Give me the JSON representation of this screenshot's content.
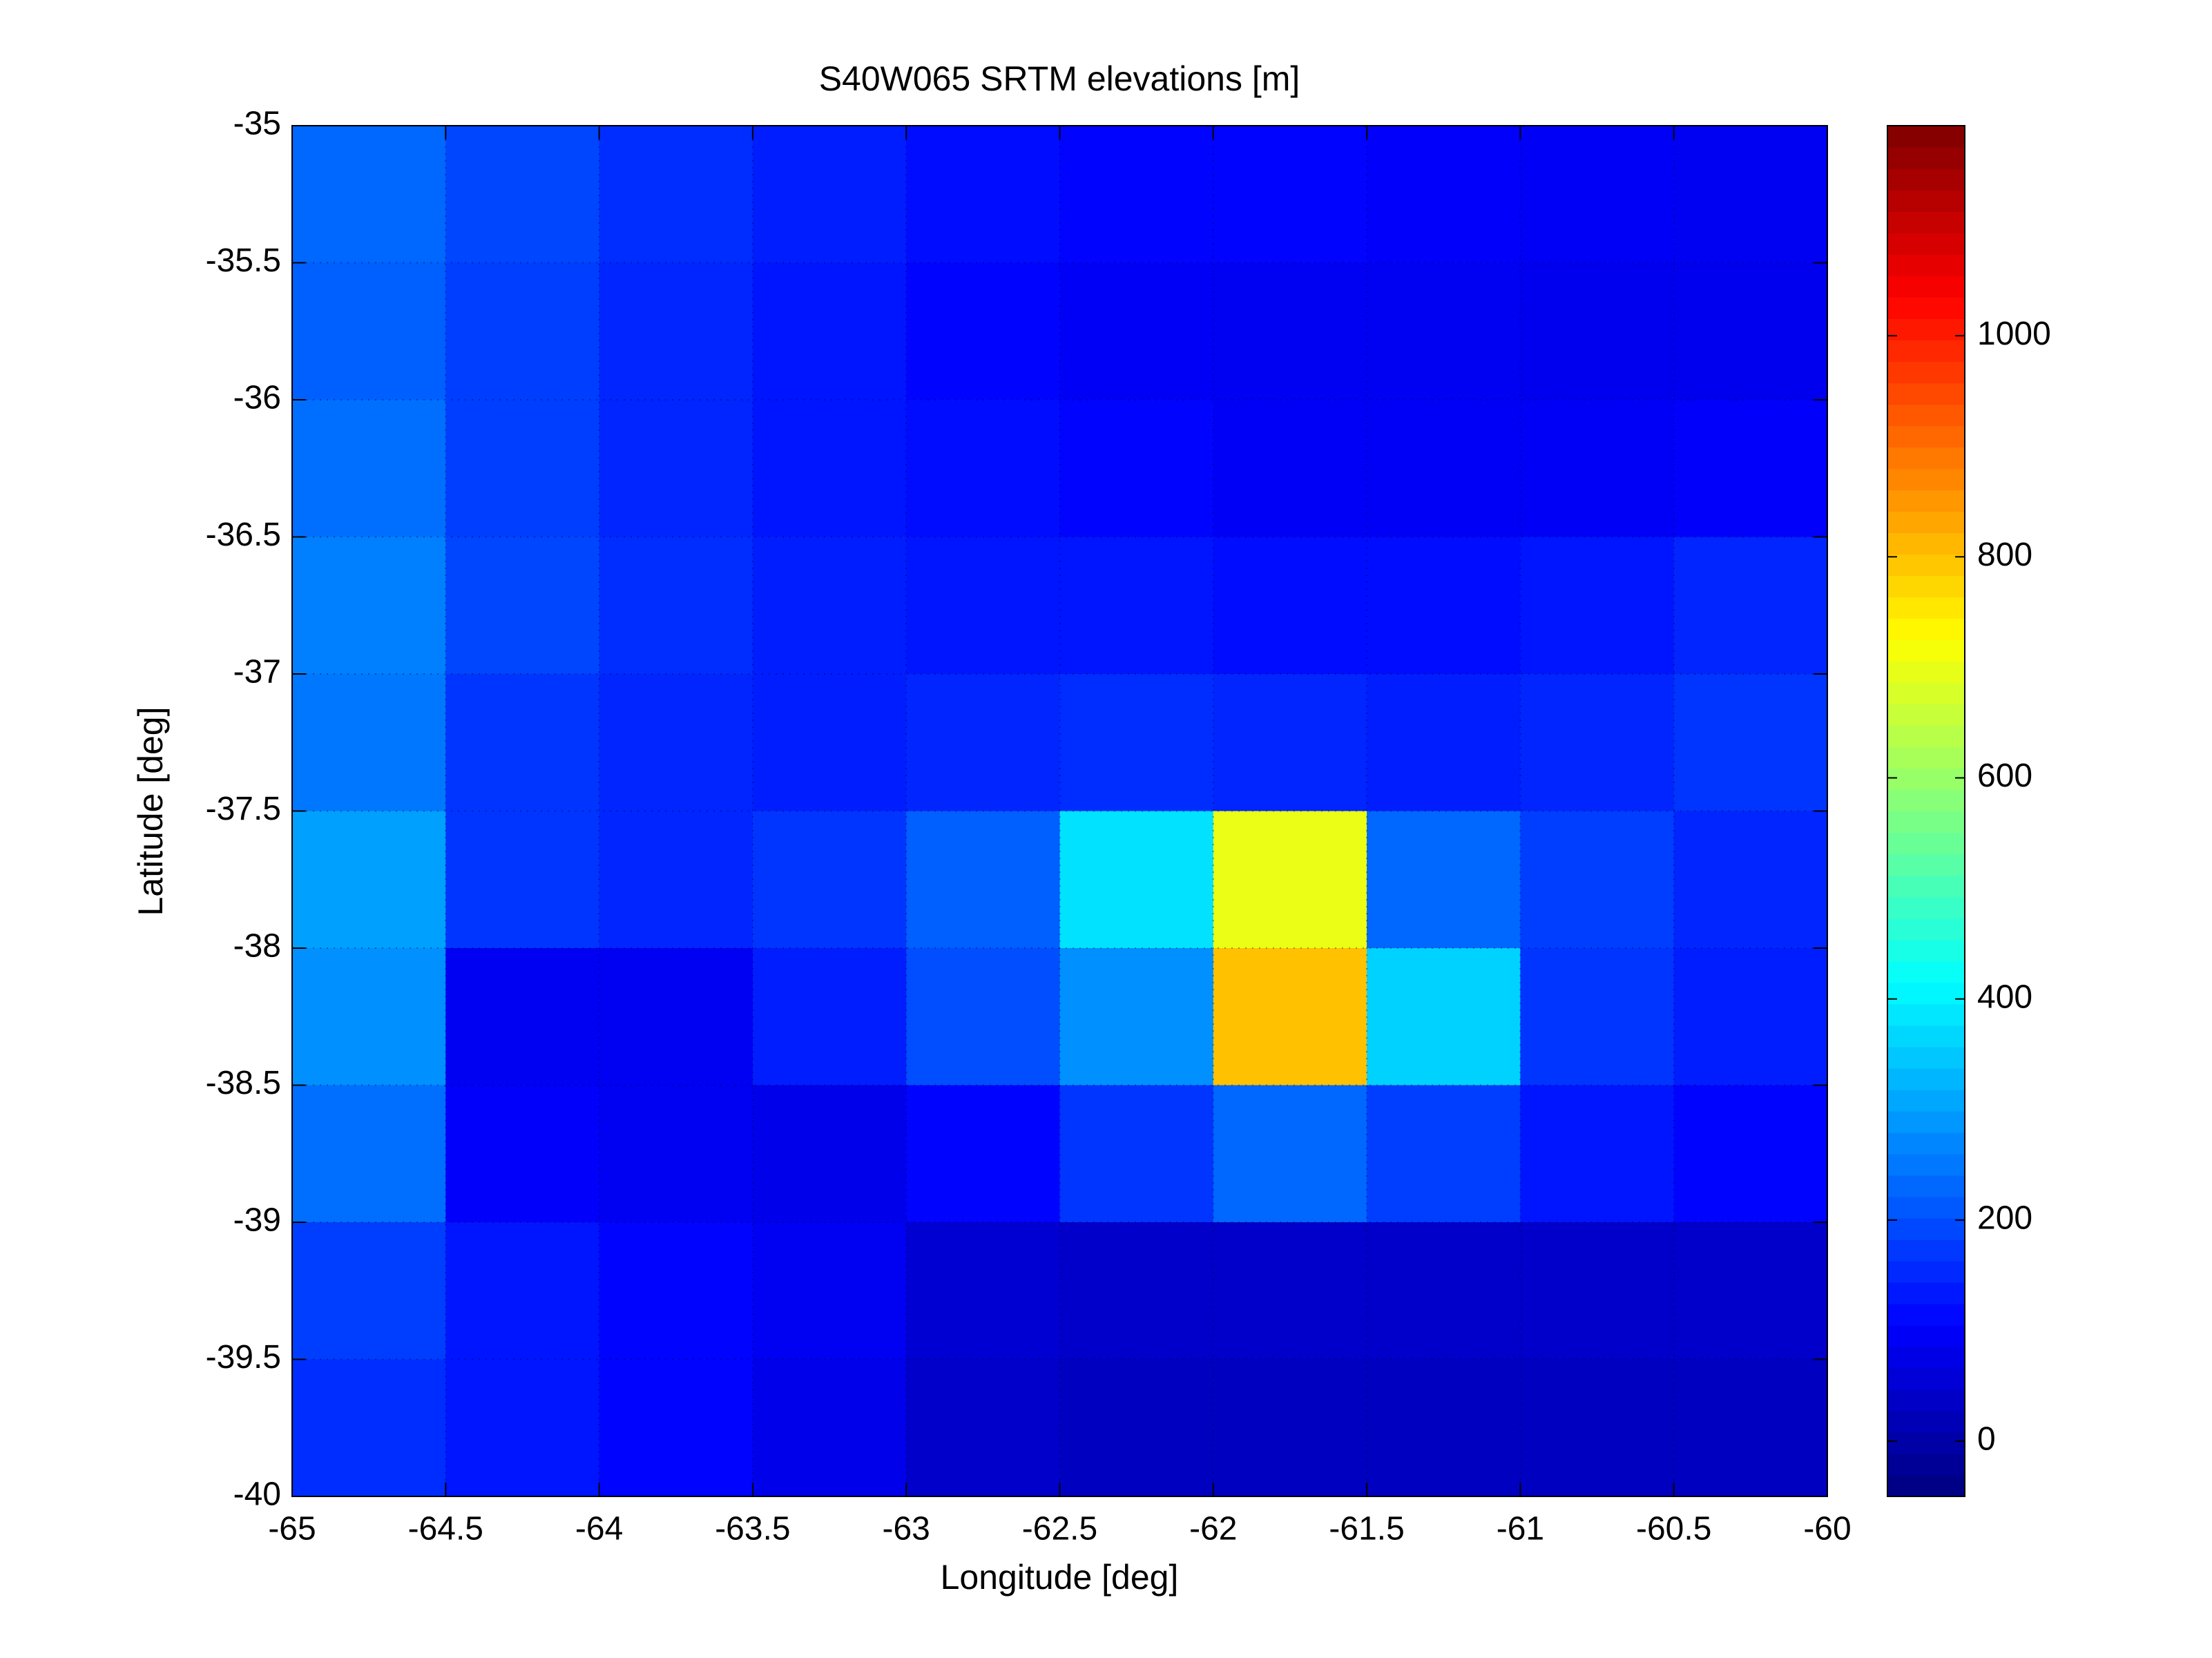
{
  "chart_data": {
    "type": "heatmap",
    "title": "S40W065 SRTM elevations [m]",
    "x_label": "Longitude [deg]",
    "y_label": "Latitude [deg]",
    "xlim": [
      -65,
      -60
    ],
    "ylim": [
      -40,
      -35
    ],
    "xticks": [
      -65,
      -64.5,
      -64,
      -63.5,
      -63,
      -62.5,
      -62,
      -61.5,
      -61,
      -60.5,
      -60
    ],
    "yticks": [
      -35,
      -35.5,
      -36,
      -36.5,
      -37,
      -37.5,
      -38,
      -38.5,
      -39,
      -39.5,
      -40
    ],
    "grid": true,
    "colormap": "jet",
    "clim": [
      -50,
      1190
    ],
    "cticks": [
      0,
      200,
      400,
      600,
      800,
      1000
    ],
    "z": [
      [
        230,
        190,
        160,
        140,
        120,
        110,
        110,
        100,
        95,
        90
      ],
      [
        220,
        180,
        150,
        130,
        110,
        95,
        90,
        90,
        85,
        85
      ],
      [
        240,
        180,
        150,
        130,
        120,
        110,
        95,
        95,
        95,
        100
      ],
      [
        260,
        190,
        160,
        140,
        130,
        130,
        120,
        120,
        130,
        150
      ],
      [
        250,
        170,
        150,
        140,
        150,
        160,
        150,
        140,
        150,
        170
      ],
      [
        300,
        170,
        150,
        170,
        220,
        380,
        700,
        230,
        180,
        150
      ],
      [
        280,
        90,
        90,
        140,
        200,
        280,
        800,
        360,
        170,
        140
      ],
      [
        240,
        100,
        90,
        80,
        110,
        170,
        230,
        180,
        130,
        110
      ],
      [
        180,
        130,
        110,
        90,
        50,
        40,
        40,
        40,
        40,
        40
      ],
      [
        160,
        130,
        110,
        80,
        40,
        30,
        30,
        30,
        30,
        30
      ]
    ]
  }
}
